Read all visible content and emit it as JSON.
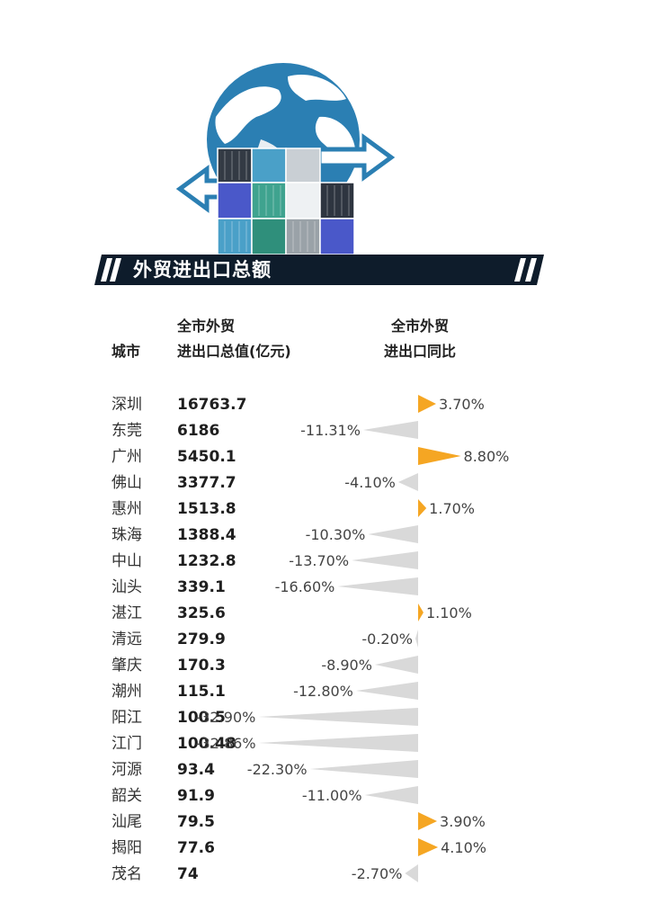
{
  "banner": {
    "title": "外贸进出口总额"
  },
  "table_headers": {
    "city": "城市",
    "value_line1": "全市外贸",
    "value_line2": "进出口总值(亿元)",
    "yoy_line1": "全市外贸",
    "yoy_line2": "进出口同比"
  },
  "colors": {
    "positive": "#f5a623",
    "negative": "#d9d9d9",
    "banner": "#0e1c2b",
    "globe_land": "#ffffff",
    "globe_water": "#2b7fb3"
  },
  "chart_data": {
    "type": "table",
    "columns": [
      "城市",
      "全市外贸进出口总值(亿元)",
      "全市外贸进出口同比"
    ],
    "rows": [
      {
        "city": "深圳",
        "value": "16763.7",
        "yoy": 3.7,
        "yoy_label": "3.70%"
      },
      {
        "city": "东莞",
        "value": "6186",
        "yoy": -11.31,
        "yoy_label": "-11.31%"
      },
      {
        "city": "广州",
        "value": "5450.1",
        "yoy": 8.8,
        "yoy_label": "8.80%"
      },
      {
        "city": "佛山",
        "value": "3377.7",
        "yoy": -4.1,
        "yoy_label": "-4.10%"
      },
      {
        "city": "惠州",
        "value": "1513.8",
        "yoy": 1.7,
        "yoy_label": "1.70%"
      },
      {
        "city": "珠海",
        "value": "1388.4",
        "yoy": -10.3,
        "yoy_label": "-10.30%"
      },
      {
        "city": "中山",
        "value": "1232.8",
        "yoy": -13.7,
        "yoy_label": "-13.70%"
      },
      {
        "city": "汕头",
        "value": "339.1",
        "yoy": -16.6,
        "yoy_label": "-16.60%"
      },
      {
        "city": "湛江",
        "value": "325.6",
        "yoy": 1.1,
        "yoy_label": "1.10%"
      },
      {
        "city": "清远",
        "value": "279.9",
        "yoy": -0.2,
        "yoy_label": "-0.20%"
      },
      {
        "city": "肇庆",
        "value": "170.3",
        "yoy": -8.9,
        "yoy_label": "-8.90%"
      },
      {
        "city": "潮州",
        "value": "115.1",
        "yoy": -12.8,
        "yoy_label": "-12.80%"
      },
      {
        "city": "阳江",
        "value": "100.5",
        "yoy": -32.9,
        "yoy_label": "-32.90%"
      },
      {
        "city": "江门",
        "value": "100.48",
        "yoy": -32.86,
        "yoy_label": "-32.86%"
      },
      {
        "city": "河源",
        "value": "93.4",
        "yoy": -22.3,
        "yoy_label": "-22.30%"
      },
      {
        "city": "韶关",
        "value": "91.9",
        "yoy": -11.0,
        "yoy_label": "-11.00%"
      },
      {
        "city": "汕尾",
        "value": "79.5",
        "yoy": 3.9,
        "yoy_label": "3.90%"
      },
      {
        "city": "揭阳",
        "value": "77.6",
        "yoy": 4.1,
        "yoy_label": "4.10%"
      },
      {
        "city": "茂名",
        "value": "74",
        "yoy": -2.7,
        "yoy_label": "-2.70%"
      }
    ]
  }
}
